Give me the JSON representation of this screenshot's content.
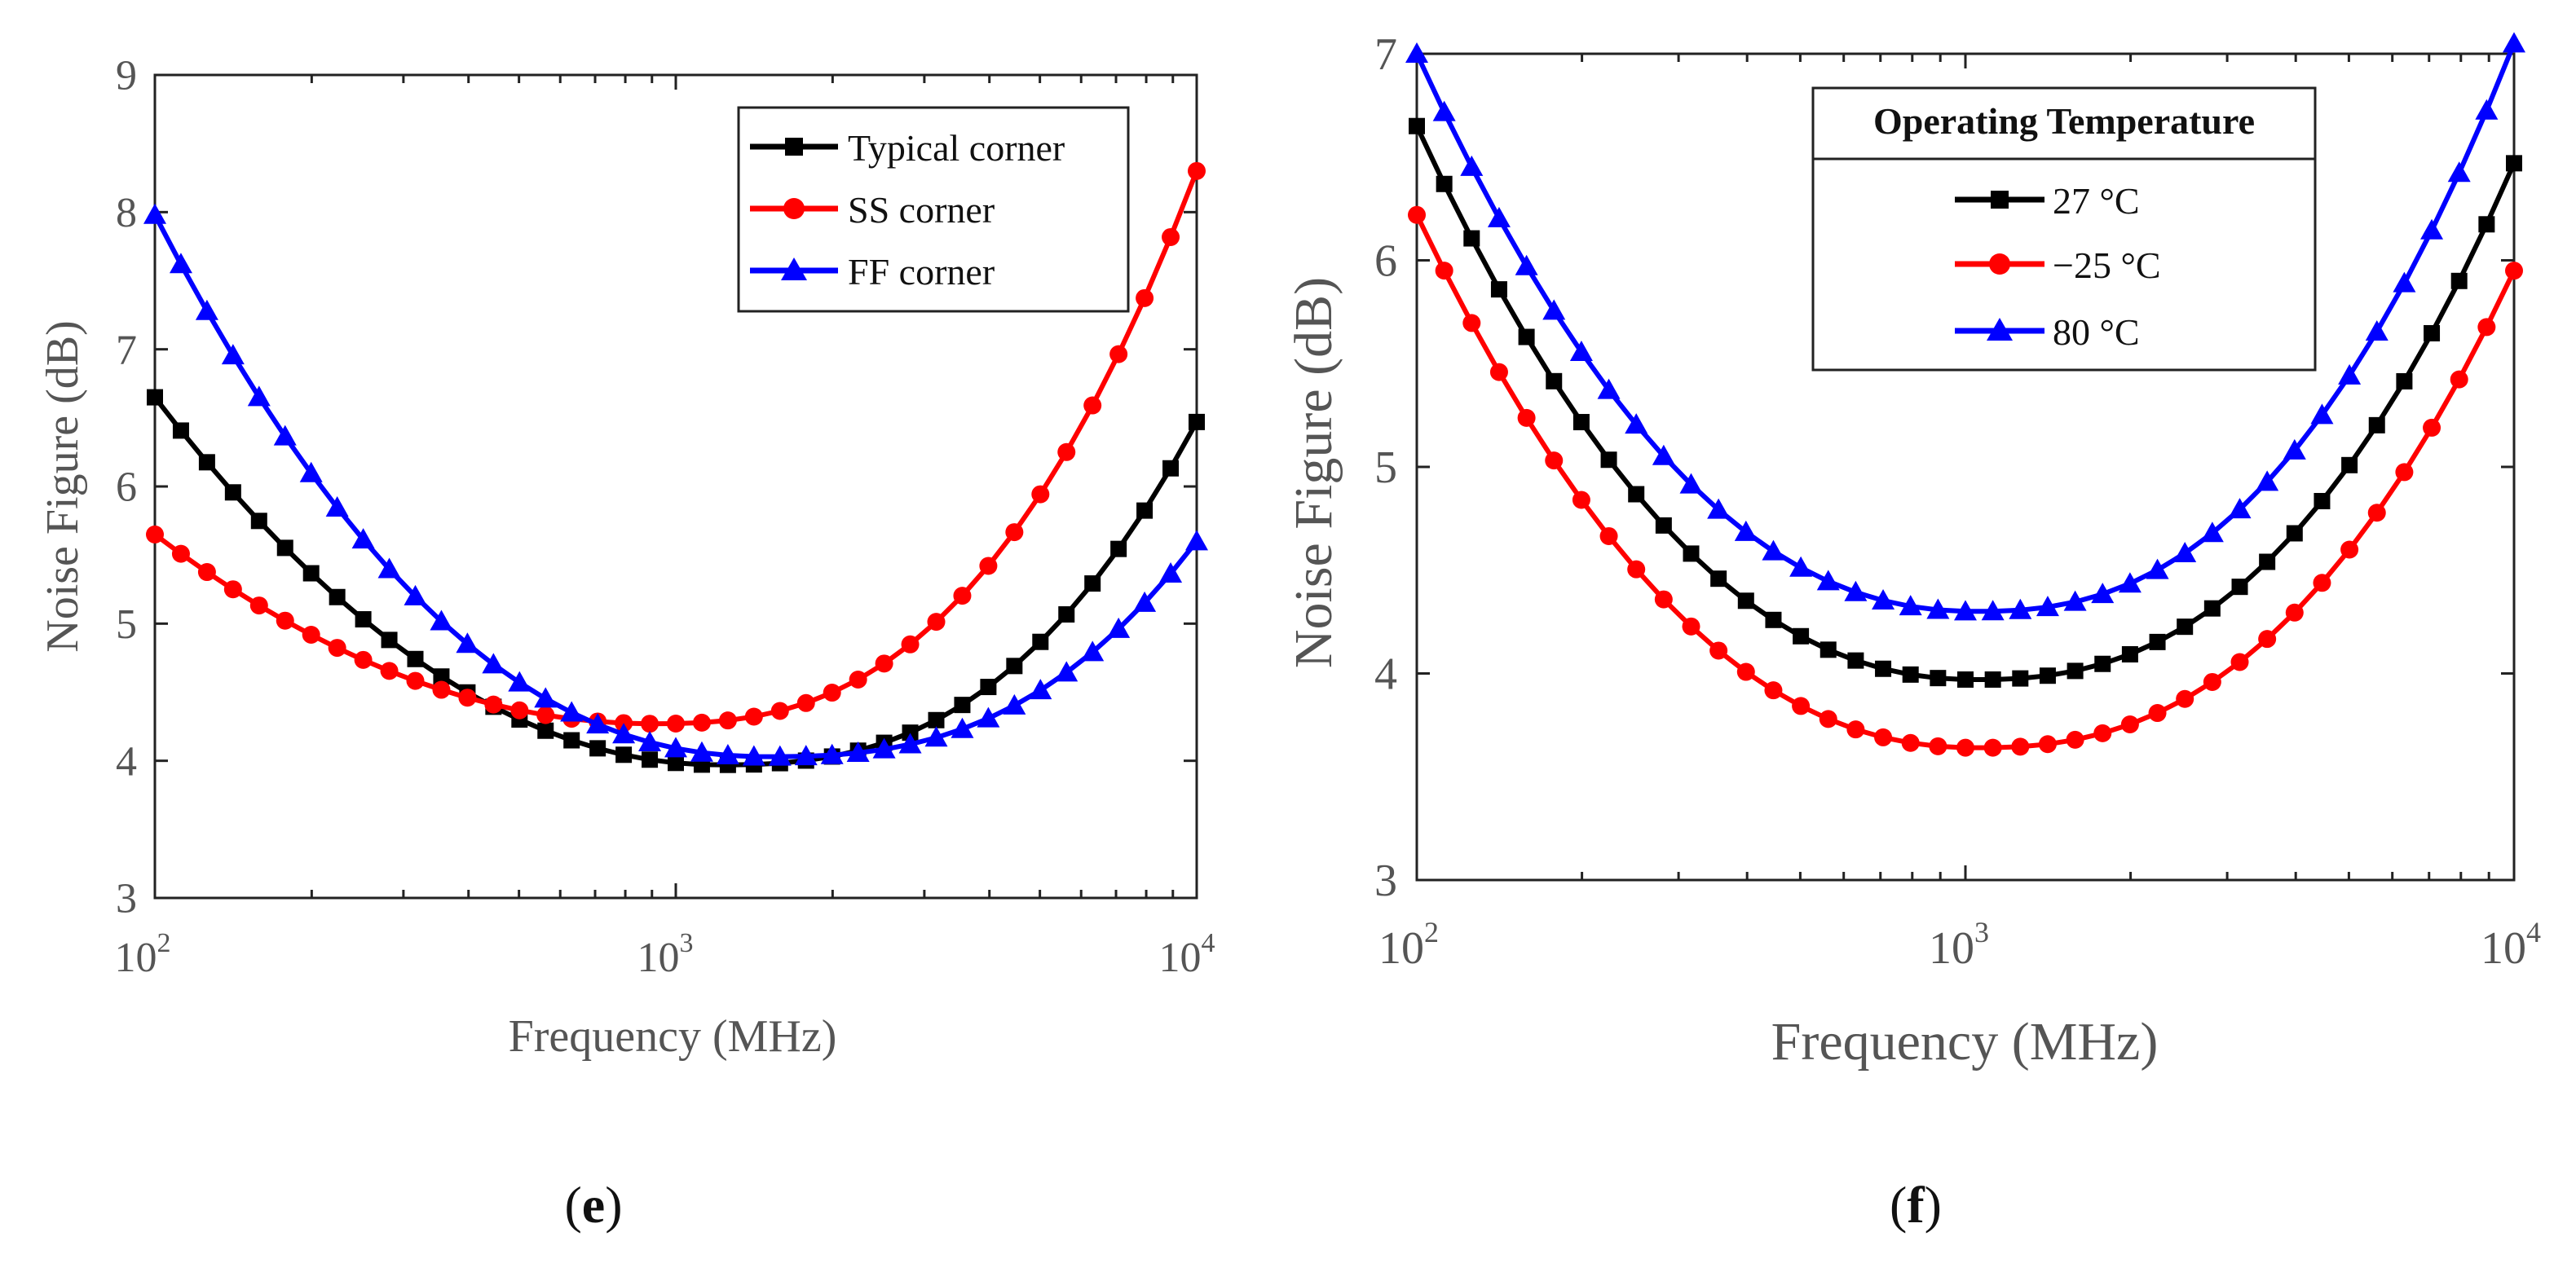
{
  "chart_data": [
    {
      "type": "line",
      "panel": "e",
      "panel_label": "(e)",
      "panel_letter": "e",
      "xlabel": "Frequency (MHz)",
      "ylabel": "Noise Figure (dB)",
      "xscale": "log",
      "xlim": [
        100,
        10000
      ],
      "ylim": [
        3,
        9
      ],
      "yticks": [
        3,
        4,
        5,
        6,
        7,
        8,
        9
      ],
      "xticks": [
        {
          "base": "10",
          "exp": "2"
        },
        {
          "base": "10",
          "exp": "3"
        },
        {
          "base": "10",
          "exp": "4"
        }
      ],
      "legend_title": "",
      "legend_position": "top-right",
      "series": [
        {
          "name": "Typical corner",
          "color": "#000000",
          "marker": "square",
          "curve": {
            "min": 3.97,
            "xmin": 1200,
            "left": 6.65,
            "right": 6.47,
            "pl": 2.0,
            "pr": 2.6
          }
        },
        {
          "name": "SS corner",
          "color": "#ff0000",
          "marker": "circle",
          "curve": {
            "min": 4.27,
            "xmin": 900,
            "left": 5.65,
            "right": 8.3,
            "pl": 2.0,
            "pr": 2.6
          }
        },
        {
          "name": "FF corner",
          "color": "#0000ff",
          "marker": "triangle",
          "curve": {
            "min": 4.03,
            "xmin": 1500,
            "left": 7.98,
            "right": 5.6,
            "pl": 2.2,
            "pr": 2.6
          }
        }
      ]
    },
    {
      "type": "line",
      "panel": "f",
      "panel_label": "(f)",
      "panel_letter": "f",
      "xlabel": "Frequency (MHz)",
      "ylabel": "Noise Figure (dB)",
      "xscale": "log",
      "xlim": [
        100,
        10000
      ],
      "ylim": [
        3,
        7
      ],
      "yticks": [
        3,
        4,
        5,
        6,
        7
      ],
      "xticks": [
        {
          "base": "10",
          "exp": "2"
        },
        {
          "base": "10",
          "exp": "3"
        },
        {
          "base": "10",
          "exp": "4"
        }
      ],
      "legend_title": "Operating Temperature",
      "legend_position": "top-center",
      "series": [
        {
          "name": "27 °C",
          "color": "#000000",
          "marker": "square",
          "curve": {
            "min": 3.97,
            "xmin": 1050,
            "left": 6.65,
            "right": 6.47,
            "pl": 2.2,
            "pr": 2.4
          }
        },
        {
          "name": "−25 °C",
          "color": "#ff0000",
          "marker": "circle",
          "curve": {
            "min": 3.64,
            "xmin": 1050,
            "left": 6.22,
            "right": 5.95,
            "pl": 2.2,
            "pr": 2.4
          }
        },
        {
          "name": "80 °C",
          "color": "#0000ff",
          "marker": "triangle",
          "curve": {
            "min": 4.3,
            "xmin": 1050,
            "left": 7.0,
            "right": 7.05,
            "pl": 2.2,
            "pr": 2.4
          }
        }
      ]
    }
  ]
}
